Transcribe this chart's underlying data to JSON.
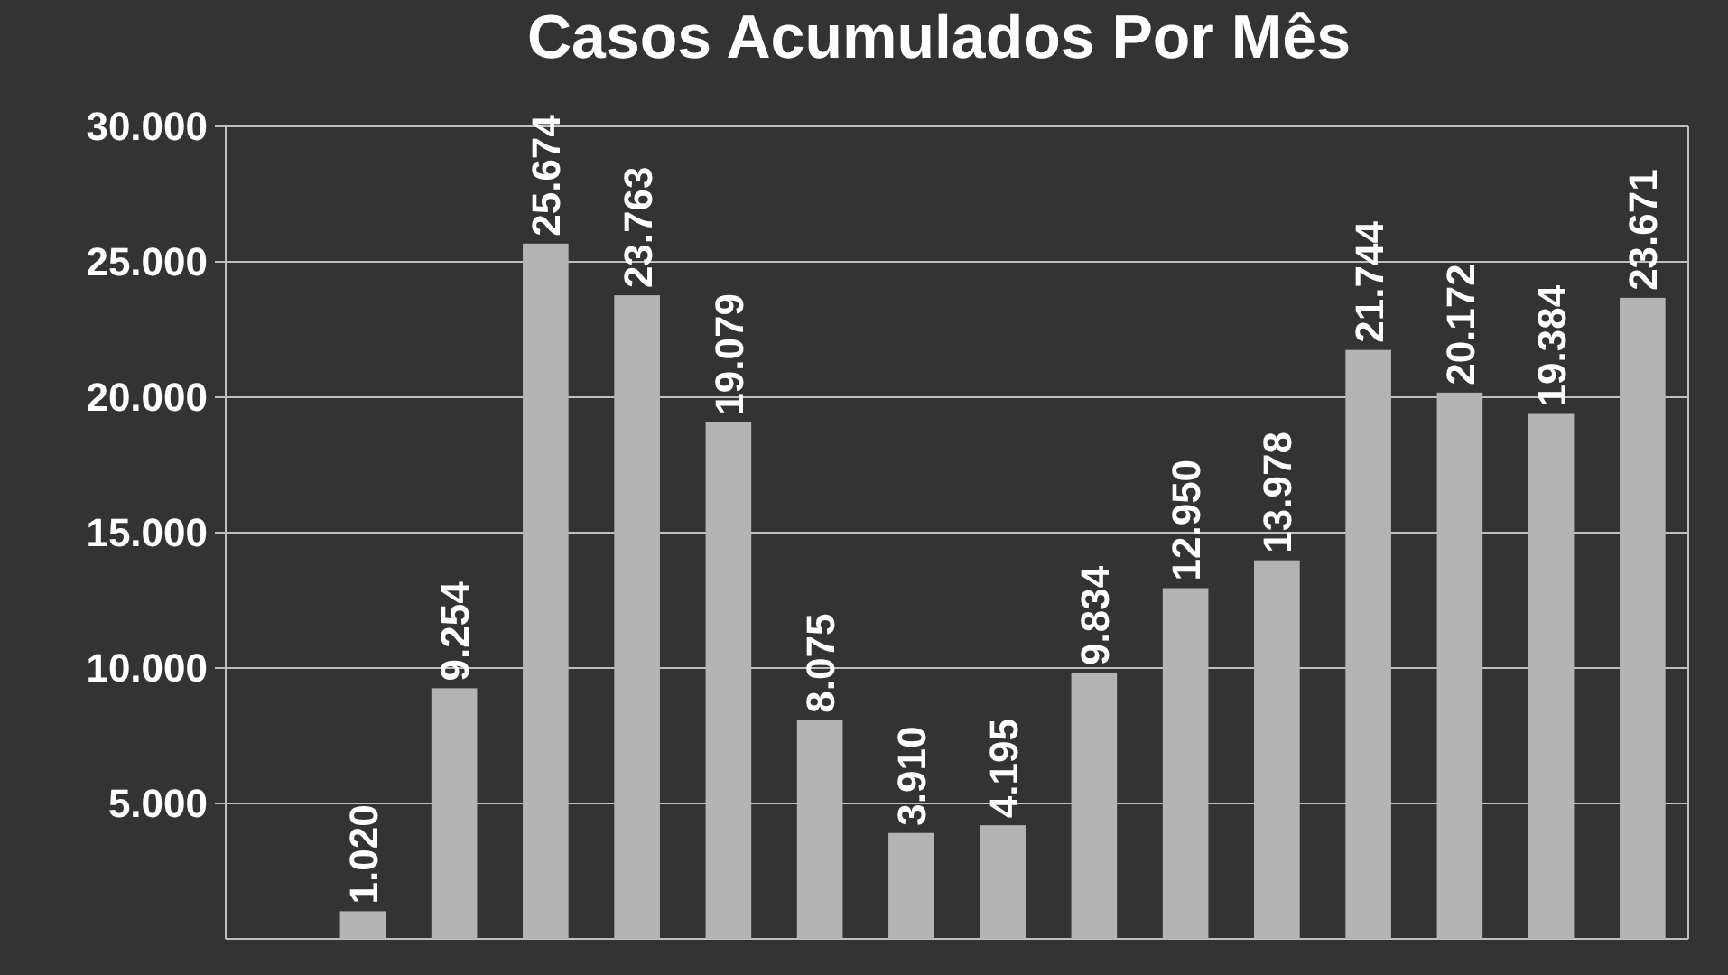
{
  "chart_data": {
    "type": "bar",
    "title": "Casos Acumulados Por Mês",
    "categories": [
      null,
      null,
      null,
      null,
      null,
      null,
      null,
      null,
      null,
      null,
      null,
      null,
      null,
      null,
      null,
      null
    ],
    "values": [
      null,
      1020,
      9254,
      25674,
      23763,
      19079,
      8075,
      3910,
      4195,
      9834,
      12950,
      13978,
      21744,
      20172,
      19384,
      23671
    ],
    "value_labels": [
      null,
      "1.020",
      "9.254",
      "25.674",
      "23.763",
      "19.079",
      "8.075",
      "3.910",
      "4.195",
      "9.834",
      "12.950",
      "13.978",
      "21.744",
      "20.172",
      "19.384",
      "23.671"
    ],
    "color": "#b4b4b4",
    "ylim": [
      0,
      30000
    ],
    "yticks": [
      {
        "value": 5000,
        "label": "5.000"
      },
      {
        "value": 10000,
        "label": "10.000"
      },
      {
        "value": 15000,
        "label": "15.000"
      },
      {
        "value": 20000,
        "label": "20.000"
      },
      {
        "value": 25000,
        "label": "25.000"
      },
      {
        "value": 30000,
        "label": "30.000"
      }
    ],
    "grid": "y",
    "tick_labels": "y"
  }
}
